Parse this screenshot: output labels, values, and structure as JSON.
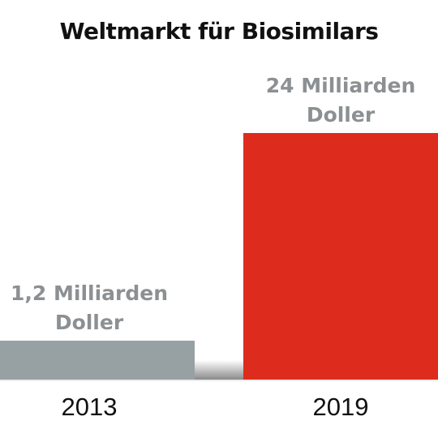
{
  "chart_data": {
    "type": "bar",
    "title": "Weltmarkt für Biosimilars",
    "categories": [
      "2013",
      "2019"
    ],
    "values": [
      1.2,
      24
    ],
    "unit": "Milliarden Doller",
    "data_labels": [
      [
        "1,2 Milliarden",
        "Doller"
      ],
      [
        "24 Milliarden",
        "Doller"
      ]
    ],
    "colors": [
      "#97a1a4",
      "#dd2c1e"
    ],
    "ylim": [
      0,
      24
    ],
    "grid": false,
    "legend": "none",
    "xlabel": "",
    "ylabel": ""
  }
}
